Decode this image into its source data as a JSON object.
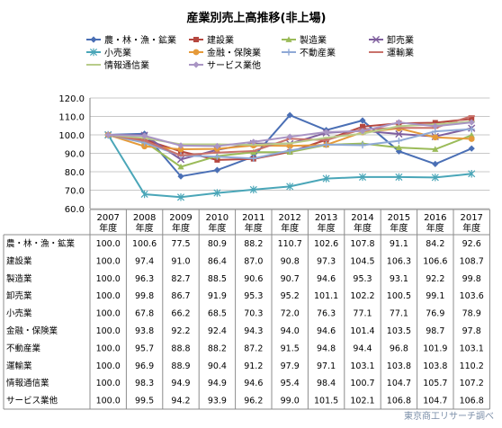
{
  "chart_data": {
    "type": "line",
    "title": "産業別売上高推移(非上場)",
    "x": [
      "2007",
      "2008",
      "2009",
      "2010",
      "2011",
      "2012",
      "2013",
      "2014",
      "2015",
      "2016",
      "2017"
    ],
    "x_sub": "年度",
    "ylim": [
      60.0,
      120.0
    ],
    "yticks": [
      "60.0",
      "70.0",
      "80.0",
      "90.0",
      "100.0",
      "110.0",
      "120.0"
    ],
    "grid": true,
    "legend_position": "top",
    "series": [
      {
        "name": "農・林・漁・鉱業",
        "color": "#4a6fb5",
        "marker": "diamond",
        "values": [
          100.0,
          100.6,
          77.5,
          80.9,
          88.2,
          110.7,
          102.6,
          107.8,
          91.1,
          84.2,
          92.6
        ]
      },
      {
        "name": "建設業",
        "color": "#b5473f",
        "marker": "square",
        "values": [
          100.0,
          97.4,
          91.0,
          86.4,
          87.0,
          90.8,
          97.3,
          104.5,
          106.3,
          106.6,
          108.7
        ]
      },
      {
        "name": "製造業",
        "color": "#9bbb59",
        "marker": "triangle",
        "values": [
          100.0,
          96.3,
          82.7,
          88.5,
          90.6,
          90.7,
          94.6,
          95.3,
          93.1,
          92.2,
          99.8
        ]
      },
      {
        "name": "卸売業",
        "color": "#7f5f9e",
        "marker": "x",
        "values": [
          100.0,
          99.8,
          86.7,
          91.9,
          95.3,
          95.2,
          101.1,
          102.2,
          100.5,
          99.1,
          103.6
        ]
      },
      {
        "name": "小売業",
        "color": "#4aa6b8",
        "marker": "star",
        "values": [
          100.0,
          67.8,
          66.2,
          68.5,
          70.3,
          72.0,
          76.3,
          77.1,
          77.1,
          76.9,
          78.9
        ]
      },
      {
        "name": "金融・保険業",
        "color": "#e59a3a",
        "marker": "circle",
        "values": [
          100.0,
          93.8,
          92.2,
          92.4,
          94.3,
          94.0,
          94.6,
          101.4,
          103.5,
          98.7,
          97.8
        ]
      },
      {
        "name": "不動産業",
        "color": "#8fa9d6",
        "marker": "plus",
        "values": [
          100.0,
          95.7,
          88.8,
          88.2,
          87.2,
          91.5,
          94.8,
          94.4,
          96.8,
          101.9,
          103.1
        ]
      },
      {
        "name": "運輸業",
        "color": "#c9726b",
        "marker": "dash",
        "values": [
          100.0,
          96.9,
          88.9,
          90.4,
          91.2,
          97.9,
          97.1,
          103.1,
          103.8,
          103.8,
          110.2
        ]
      },
      {
        "name": "情報通信業",
        "color": "#b8cc8a",
        "marker": "dash",
        "values": [
          100.0,
          98.3,
          94.9,
          94.9,
          94.6,
          95.4,
          98.4,
          100.7,
          104.7,
          105.7,
          107.2
        ]
      },
      {
        "name": "サービス業他",
        "color": "#a995c4",
        "marker": "diamond",
        "values": [
          100.0,
          99.5,
          94.2,
          93.9,
          96.2,
          99.0,
          101.5,
          102.1,
          106.8,
          104.7,
          106.8
        ]
      }
    ],
    "table_values": [
      [
        "100.0",
        "100.6",
        "77.5",
        "80.9",
        "88.2",
        "110.7",
        "102.6",
        "107.8",
        "91.1",
        "84.2",
        "92.6"
      ],
      [
        "100.0",
        "97.4",
        "91.0",
        "86.4",
        "87.0",
        "90.8",
        "97.3",
        "104.5",
        "106.3",
        "106.6",
        "108.7"
      ],
      [
        "100.0",
        "96.3",
        "82.7",
        "88.5",
        "90.6",
        "90.7",
        "94.6",
        "95.3",
        "93.1",
        "92.2",
        "99.8"
      ],
      [
        "100.0",
        "99.8",
        "86.7",
        "91.9",
        "95.3",
        "95.2",
        "101.1",
        "102.2",
        "100.5",
        "99.1",
        "103.6"
      ],
      [
        "100.0",
        "67.8",
        "66.2",
        "68.5",
        "70.3",
        "72.0",
        "76.3",
        "77.1",
        "77.1",
        "76.9",
        "78.9"
      ],
      [
        "100.0",
        "93.8",
        "92.2",
        "92.4",
        "94.3",
        "94.0",
        "94.6",
        "101.4",
        "103.5",
        "98.7",
        "97.8"
      ],
      [
        "100.0",
        "95.7",
        "88.8",
        "88.2",
        "87.2",
        "91.5",
        "94.8",
        "94.4",
        "96.8",
        "101.9",
        "103.1"
      ],
      [
        "100.0",
        "96.9",
        "88.9",
        "90.4",
        "91.2",
        "97.9",
        "97.1",
        "103.1",
        "103.8",
        "103.8",
        "110.2"
      ],
      [
        "100.0",
        "98.3",
        "94.9",
        "94.9",
        "94.6",
        "95.4",
        "98.4",
        "100.7",
        "104.7",
        "105.7",
        "107.2"
      ],
      [
        "100.0",
        "99.5",
        "94.2",
        "93.9",
        "96.2",
        "99.0",
        "101.5",
        "102.1",
        "106.8",
        "104.7",
        "106.8"
      ]
    ],
    "source": "東京商工リサーチ調べ"
  }
}
